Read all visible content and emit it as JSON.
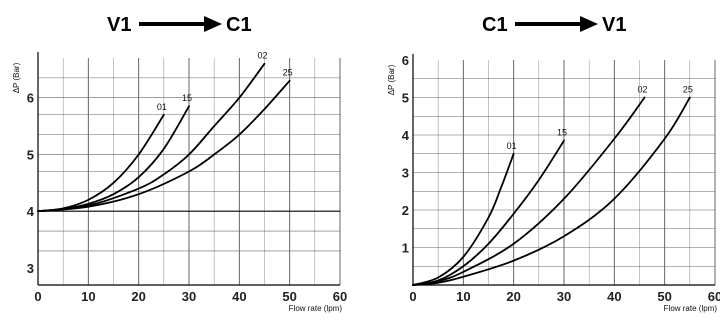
{
  "chart_data": [
    {
      "type": "line",
      "title_from": "V1",
      "title_to": "C1",
      "xlabel": "Flow rate (lpm)",
      "ylabel": "ΔP (Bar)",
      "xlim": [
        0,
        60
      ],
      "ylim": [
        2.7,
        6.7
      ],
      "xticks": [
        "0",
        "10",
        "20",
        "30",
        "40",
        "50",
        "60"
      ],
      "yticks": [
        "3",
        "4",
        "5",
        "6"
      ],
      "grid": true,
      "series": [
        {
          "name": "01",
          "x": [
            0,
            5,
            10,
            15,
            20,
            25
          ],
          "y": [
            4.0,
            4.05,
            4.2,
            4.5,
            5.0,
            5.7
          ]
        },
        {
          "name": "15",
          "x": [
            0,
            5,
            10,
            15,
            20,
            25,
            30
          ],
          "y": [
            4.0,
            4.04,
            4.13,
            4.3,
            4.6,
            5.1,
            5.85
          ]
        },
        {
          "name": "02",
          "x": [
            0,
            10,
            20,
            25,
            30,
            35,
            40,
            45
          ],
          "y": [
            4.0,
            4.1,
            4.4,
            4.65,
            5.0,
            5.5,
            6.0,
            6.6
          ]
        },
        {
          "name": "25",
          "x": [
            0,
            10,
            20,
            30,
            35,
            40,
            45,
            50
          ],
          "y": [
            4.0,
            4.08,
            4.3,
            4.7,
            5.0,
            5.35,
            5.8,
            6.3
          ]
        }
      ],
      "reference_line": {
        "y": 4.0
      }
    },
    {
      "type": "line",
      "title_from": "C1",
      "title_to": "V1",
      "xlabel": "Flow rate (lpm)",
      "ylabel": "ΔP (Bar)",
      "xlim": [
        0,
        60
      ],
      "ylim": [
        0,
        6
      ],
      "xticks": [
        "0",
        "10",
        "20",
        "30",
        "40",
        "50",
        "60"
      ],
      "yticks": [
        "1",
        "2",
        "3",
        "4",
        "5",
        "6"
      ],
      "grid": true,
      "series": [
        {
          "name": "01",
          "x": [
            0,
            5,
            10,
            15,
            17.5,
            20
          ],
          "y": [
            0,
            0.2,
            0.75,
            1.8,
            2.6,
            3.5
          ]
        },
        {
          "name": "15",
          "x": [
            0,
            5,
            10,
            15,
            20,
            25,
            30
          ],
          "y": [
            0,
            0.12,
            0.5,
            1.1,
            1.9,
            2.8,
            3.85
          ]
        },
        {
          "name": "02",
          "x": [
            0,
            5,
            10,
            20,
            30,
            40,
            46
          ],
          "y": [
            0,
            0.1,
            0.35,
            1.1,
            2.3,
            3.9,
            5.0
          ]
        },
        {
          "name": "25",
          "x": [
            0,
            5,
            10,
            20,
            30,
            40,
            50,
            55
          ],
          "y": [
            0,
            0.06,
            0.22,
            0.65,
            1.3,
            2.3,
            3.9,
            5.0
          ]
        }
      ]
    }
  ]
}
